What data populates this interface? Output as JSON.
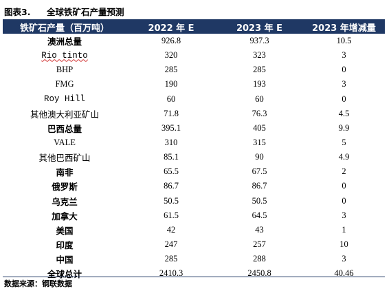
{
  "caption": {
    "figure_label": "图表3.",
    "title": "全球铁矿石产量预测"
  },
  "table": {
    "headers": [
      "铁矿石产量（百万吨）",
      "2022 年 E",
      "2023 年 E",
      "2023 年增减量"
    ],
    "rows": [
      {
        "name": "澳洲总量",
        "v2022": "926.8",
        "v2023": "937.3",
        "delta": "10.5",
        "bold": true
      },
      {
        "name": "Rio tinto",
        "v2022": "320",
        "v2023": "323",
        "delta": "3",
        "bold": false
      },
      {
        "name": "BHP",
        "v2022": "285",
        "v2023": "285",
        "delta": "0",
        "bold": false
      },
      {
        "name": "FMG",
        "v2022": "190",
        "v2023": "193",
        "delta": "3",
        "bold": false
      },
      {
        "name": "Roy Hill",
        "v2022": "60",
        "v2023": "60",
        "delta": "0",
        "bold": false
      },
      {
        "name": "其他澳大利亚矿山",
        "v2022": "71.8",
        "v2023": "76.3",
        "delta": "4.5",
        "bold": false
      },
      {
        "name": "巴西总量",
        "v2022": "395.1",
        "v2023": "405",
        "delta": "9.9",
        "bold": true
      },
      {
        "name": "VALE",
        "v2022": "310",
        "v2023": "315",
        "delta": "5",
        "bold": false
      },
      {
        "name": "其他巴西矿山",
        "v2022": "85.1",
        "v2023": "90",
        "delta": "4.9",
        "bold": false
      },
      {
        "name": "南非",
        "v2022": "65.5",
        "v2023": "67.5",
        "delta": "2",
        "bold": true
      },
      {
        "name": "俄罗斯",
        "v2022": "86.7",
        "v2023": "86.7",
        "delta": "0",
        "bold": true
      },
      {
        "name": "乌克兰",
        "v2022": "50.5",
        "v2023": "50.5",
        "delta": "0",
        "bold": true
      },
      {
        "name": "加拿大",
        "v2022": "61.5",
        "v2023": "64.5",
        "delta": "3",
        "bold": true
      },
      {
        "name": "美国",
        "v2022": "42",
        "v2023": "43",
        "delta": "1",
        "bold": true
      },
      {
        "name": "印度",
        "v2022": "247",
        "v2023": "257",
        "delta": "10",
        "bold": true
      },
      {
        "name": "中国",
        "v2022": "285",
        "v2023": "288",
        "delta": "3",
        "bold": true
      },
      {
        "name": "全球总计",
        "v2022": "2410.3",
        "v2023": "2450.8",
        "delta": "40.46",
        "bold": true
      }
    ]
  },
  "source": "数据来源：钢联数据",
  "colors": {
    "header_bg": "#1f3864",
    "header_text": "#ffffff"
  }
}
